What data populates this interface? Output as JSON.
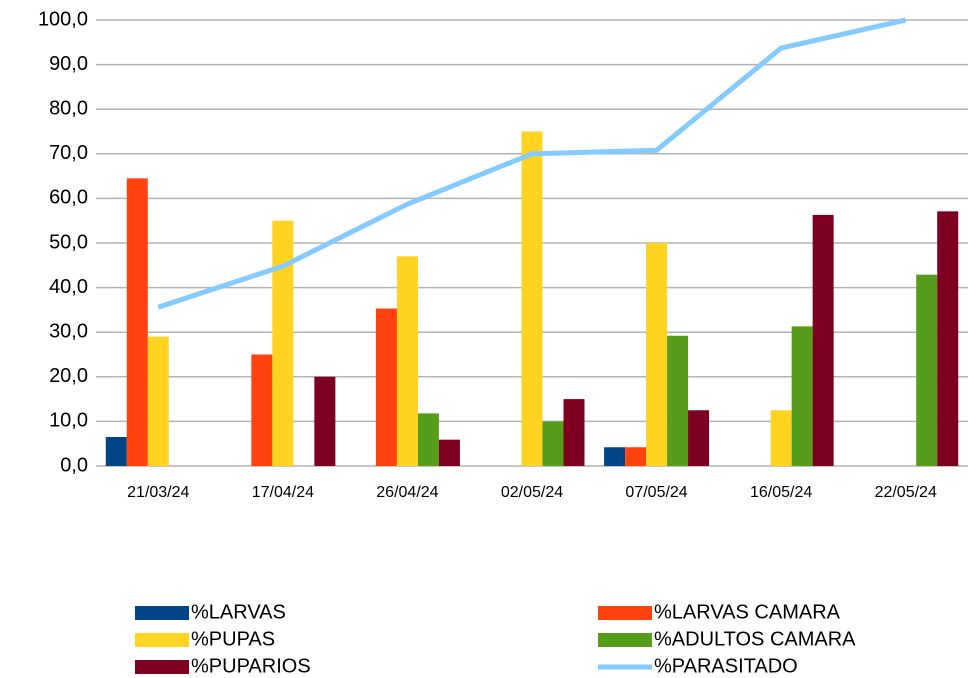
{
  "chart_data": {
    "type": "bar",
    "categories": [
      "21/03/24",
      "17/04/24",
      "26/04/24",
      "02/05/24",
      "07/05/24",
      "16/05/24",
      "22/05/24"
    ],
    "series": [
      {
        "name": "%LARVAS",
        "color": "#004586",
        "type": "bar",
        "values": [
          6.5,
          0,
          0,
          0,
          4.2,
          0,
          0
        ]
      },
      {
        "name": "%LARVAS CAMARA",
        "color": "#ff420e",
        "type": "bar",
        "values": [
          64.5,
          25,
          35.3,
          0,
          4.2,
          0,
          0
        ]
      },
      {
        "name": "%PUPAS",
        "color": "#ffd320",
        "type": "bar",
        "values": [
          29,
          55,
          47,
          75,
          50,
          12.5,
          0
        ]
      },
      {
        "name": "%ADULTOS CAMARA",
        "color": "#579d1c",
        "type": "bar",
        "values": [
          0,
          0,
          11.8,
          10,
          29.2,
          31.3,
          42.9
        ]
      },
      {
        "name": "%PUPARIOS",
        "color": "#7e0021",
        "type": "bar",
        "values": [
          0,
          20,
          5.9,
          15,
          12.5,
          56.3,
          57.1
        ]
      },
      {
        "name": "%PARASITADO",
        "color": "#83caff",
        "type": "line",
        "values": [
          35.6,
          44.8,
          58.7,
          70,
          70.8,
          93.7,
          100
        ]
      }
    ],
    "ylim": [
      0,
      100
    ],
    "yticks": [
      {
        "value": 0,
        "label": "0,0"
      },
      {
        "value": 10,
        "label": "10,0"
      },
      {
        "value": 20,
        "label": "20,0"
      },
      {
        "value": 30,
        "label": "30,0"
      },
      {
        "value": 40,
        "label": "40,0"
      },
      {
        "value": 50,
        "label": "50,0"
      },
      {
        "value": 60,
        "label": "60,0"
      },
      {
        "value": 70,
        "label": "70,0"
      },
      {
        "value": 80,
        "label": "80,0"
      },
      {
        "value": 90,
        "label": "90,0"
      },
      {
        "value": 100,
        "label": "100,0"
      }
    ],
    "grid": true,
    "legend": "bottom"
  }
}
